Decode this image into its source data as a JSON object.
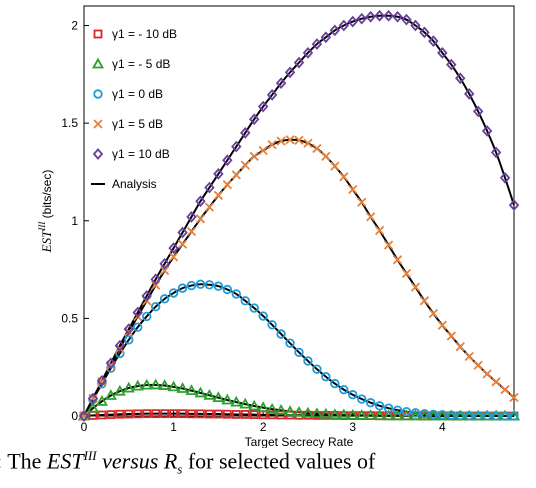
{
  "chart_data": {
    "type": "line",
    "xlabel": "Target Secrecy Rate",
    "ylabel": "EST",
    "ylabel_sup": "III",
    "ylabel_unit": "(bits/sec)",
    "xlim": [
      0,
      4.8
    ],
    "ylim": [
      0,
      2.1
    ],
    "xticks": [
      0,
      1,
      2,
      3,
      4
    ],
    "yticks": [
      0,
      0.5,
      1,
      1.5,
      2
    ],
    "x": [
      0.0,
      0.1,
      0.2,
      0.3,
      0.4,
      0.5,
      0.6,
      0.7,
      0.8,
      0.9,
      1.0,
      1.1,
      1.2,
      1.3,
      1.4,
      1.5,
      1.6,
      1.7,
      1.8,
      1.9,
      2.0,
      2.1,
      2.2,
      2.3,
      2.4,
      2.5,
      2.6,
      2.7,
      2.8,
      2.9,
      3.0,
      3.1,
      3.2,
      3.3,
      3.4,
      3.5,
      3.6,
      3.7,
      3.8,
      3.9,
      4.0,
      4.1,
      4.2,
      4.3,
      4.4,
      4.5,
      4.6,
      4.7,
      4.8
    ],
    "series": [
      {
        "name": "γ1 = - 10 dB",
        "marker": "square",
        "color": "#d62728",
        "values": [
          0.0,
          0.003,
          0.005,
          0.007,
          0.009,
          0.01,
          0.011,
          0.012,
          0.012,
          0.012,
          0.012,
          0.012,
          0.011,
          0.011,
          0.01,
          0.01,
          0.009,
          0.008,
          0.008,
          0.007,
          0.006,
          0.006,
          0.005,
          0.005,
          0.004,
          0.004,
          0.003,
          0.003,
          0.003,
          0.002,
          0.002,
          0.002,
          0.002,
          0.001,
          0.001,
          0.001,
          0.001,
          0.001,
          0.001,
          0.001,
          0.001,
          0.0,
          0.0,
          0.0,
          0.0,
          0.0,
          0.0,
          0.0,
          0.0
        ]
      },
      {
        "name": "γ1 = - 5 dB",
        "marker": "triangle",
        "color": "#2ca02c",
        "values": [
          0.0,
          0.04,
          0.075,
          0.105,
          0.127,
          0.143,
          0.153,
          0.158,
          0.159,
          0.156,
          0.149,
          0.141,
          0.13,
          0.118,
          0.106,
          0.094,
          0.082,
          0.071,
          0.061,
          0.051,
          0.043,
          0.035,
          0.029,
          0.023,
          0.019,
          0.015,
          0.012,
          0.009,
          0.007,
          0.006,
          0.004,
          0.003,
          0.002,
          0.002,
          0.001,
          0.001,
          0.001,
          0.001,
          0.0,
          0.0,
          0.0,
          0.0,
          0.0,
          0.0,
          0.0,
          0.0,
          0.0,
          0.0,
          0.0
        ]
      },
      {
        "name": "γ1 = 0 dB",
        "marker": "circle",
        "color": "#1f9bd7",
        "values": [
          0.0,
          0.085,
          0.165,
          0.245,
          0.32,
          0.39,
          0.455,
          0.51,
          0.56,
          0.6,
          0.63,
          0.655,
          0.668,
          0.675,
          0.672,
          0.665,
          0.648,
          0.625,
          0.59,
          0.553,
          0.512,
          0.467,
          0.42,
          0.373,
          0.326,
          0.282,
          0.24,
          0.201,
          0.166,
          0.135,
          0.109,
          0.087,
          0.068,
          0.052,
          0.04,
          0.03,
          0.022,
          0.016,
          0.012,
          0.008,
          0.006,
          0.004,
          0.003,
          0.002,
          0.001,
          0.001,
          0.001,
          0.0,
          0.0
        ]
      },
      {
        "name": "γ1 = 5 dB",
        "marker": "cross",
        "color": "#e8803a",
        "values": [
          0.0,
          0.09,
          0.175,
          0.26,
          0.345,
          0.43,
          0.51,
          0.59,
          0.67,
          0.745,
          0.815,
          0.88,
          0.945,
          1.01,
          1.07,
          1.13,
          1.185,
          1.235,
          1.285,
          1.33,
          1.36,
          1.39,
          1.408,
          1.415,
          1.412,
          1.397,
          1.37,
          1.33,
          1.28,
          1.225,
          1.16,
          1.095,
          1.02,
          0.95,
          0.875,
          0.8,
          0.73,
          0.66,
          0.59,
          0.525,
          0.465,
          0.41,
          0.355,
          0.305,
          0.26,
          0.215,
          0.175,
          0.135,
          0.095
        ]
      },
      {
        "name": "γ1 = 10 dB",
        "marker": "diamond",
        "color": "#6a3d9a",
        "values": [
          0.0,
          0.09,
          0.18,
          0.27,
          0.36,
          0.445,
          0.53,
          0.615,
          0.7,
          0.78,
          0.86,
          0.94,
          1.02,
          1.1,
          1.17,
          1.24,
          1.31,
          1.38,
          1.45,
          1.52,
          1.585,
          1.645,
          1.705,
          1.76,
          1.81,
          1.86,
          1.905,
          1.94,
          1.975,
          2.0,
          2.02,
          2.035,
          2.045,
          2.05,
          2.05,
          2.045,
          2.03,
          2.0,
          1.965,
          1.92,
          1.86,
          1.8,
          1.73,
          1.65,
          1.56,
          1.46,
          1.35,
          1.22,
          1.08
        ]
      }
    ],
    "analysis": {
      "name": "Analysis",
      "color": "#000000"
    },
    "legend_position": "top-left"
  },
  "caption": {
    "prefix": ": The",
    "symbol": "EST",
    "symbol_sup": "III",
    "middle": "versus",
    "var": "R",
    "var_sub": "s",
    "suffix": "for selected values of"
  }
}
